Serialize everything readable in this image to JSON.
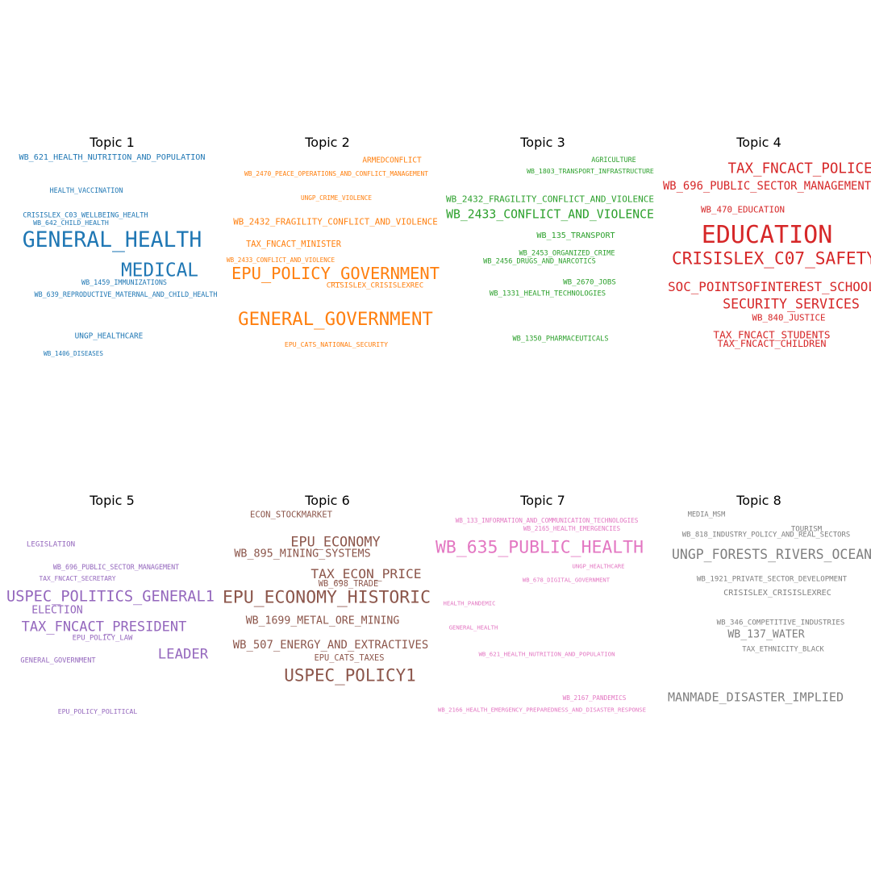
{
  "chart_data": [
    {
      "type": "wordcloud",
      "title": "Topic 1",
      "color": "#1f77b4",
      "words": [
        {
          "text": "WB_621_HEALTH_NUTRITION_AND_POPULATION",
          "weight": 0.17
        },
        {
          "text": "HEALTH_VACCINATION",
          "weight": 0.1
        },
        {
          "text": "CRISISLEX_C03_WELLBEING_HEALTH",
          "weight": 0.11
        },
        {
          "text": "WB_642_CHILD_HEALTH",
          "weight": 0.09
        },
        {
          "text": "GENERAL_HEALTH",
          "weight": 0.85
        },
        {
          "text": "MEDICAL",
          "weight": 0.7
        },
        {
          "text": "WB_1459_IMMUNIZATIONS",
          "weight": 0.1
        },
        {
          "text": "WB_639_REPRODUCTIVE_MATERNAL_AND_CHILD_HEALTH",
          "weight": 0.1
        },
        {
          "text": "UNGP_HEALTHCARE",
          "weight": 0.14
        },
        {
          "text": "WB_1406_DISEASES",
          "weight": 0.07
        }
      ]
    },
    {
      "type": "wordcloud",
      "title": "Topic 2",
      "color": "#ff7f0e",
      "words": [
        {
          "text": "ARMEDCONFLICT",
          "weight": 0.14
        },
        {
          "text": "WB_2470_PEACE_OPERATIONS_AND_CONFLICT_MANAGEMENT",
          "weight": 0.08
        },
        {
          "text": "UNGP_CRIME_VIOLENCE",
          "weight": 0.07
        },
        {
          "text": "WB_2432_FRAGILITY_CONFLICT_AND_VIOLENCE",
          "weight": 0.2
        },
        {
          "text": "TAX_FNCACT_MINISTER",
          "weight": 0.18
        },
        {
          "text": "WB_2433_CONFLICT_AND_VIOLENCE",
          "weight": 0.07
        },
        {
          "text": "EPU_POLICY_GOVERNMENT",
          "weight": 0.62
        },
        {
          "text": "CRISISLEX_CRISISLEXREC",
          "weight": 0.13
        },
        {
          "text": "GENERAL_GOVERNMENT",
          "weight": 0.68
        },
        {
          "text": "EPU_CATS_NATIONAL_SECURITY",
          "weight": 0.09
        }
      ]
    },
    {
      "type": "wordcloud",
      "title": "Topic 3",
      "color": "#2ca02c",
      "words": [
        {
          "text": "AGRICULTURE",
          "weight": 0.1
        },
        {
          "text": "WB_1803_TRANSPORT_INFRASTRUCTURE",
          "weight": 0.09
        },
        {
          "text": "WB_2432_FRAGILITY_CONFLICT_AND_VIOLENCE",
          "weight": 0.23
        },
        {
          "text": "WB_2433_CONFLICT_AND_VIOLENCE",
          "weight": 0.46
        },
        {
          "text": "WB_135_TRANSPORT",
          "weight": 0.17
        },
        {
          "text": "WB_2453_ORGANIZED_CRIME",
          "weight": 0.11
        },
        {
          "text": "WB_2456_DRUGS_AND_NARCOTICS",
          "weight": 0.11
        },
        {
          "text": "WB_2670_JOBS",
          "weight": 0.13
        },
        {
          "text": "WB_1331_HEALTH_TECHNOLOGIES",
          "weight": 0.12
        },
        {
          "text": "WB_1350_PHARMACEUTICALS",
          "weight": 0.11
        }
      ]
    },
    {
      "type": "wordcloud",
      "title": "Topic 4",
      "color": "#d62728",
      "words": [
        {
          "text": "TAX_FNCACT_POLICE",
          "weight": 0.48
        },
        {
          "text": "WB_696_PUBLIC_SECTOR_MANAGEMENT",
          "weight": 0.33
        },
        {
          "text": "WB_470_EDUCATION",
          "weight": 0.2
        },
        {
          "text": "EDUCATION",
          "weight": 1.0
        },
        {
          "text": "CRISISLEX_C07_SAFETY",
          "weight": 0.63
        },
        {
          "text": "SOC_POINTSOFINTEREST_SCHOOL",
          "weight": 0.46
        },
        {
          "text": "SECURITY_SERVICES",
          "weight": 0.44
        },
        {
          "text": "WB_840_JUSTICE",
          "weight": 0.2
        },
        {
          "text": "TAX_FNCACT_STUDENTS",
          "weight": 0.28
        },
        {
          "text": "TAX_FNCACT_CHILDREN",
          "weight": 0.24
        }
      ]
    },
    {
      "type": "wordcloud",
      "title": "Topic 5",
      "color": "#9467bd",
      "words": [
        {
          "text": "LEGISLATION",
          "weight": 0.13
        },
        {
          "text": "WB_696_PUBLIC_SECTOR_MANAGEMENT",
          "weight": 0.1
        },
        {
          "text": "TAX_FNCACT_SECRETARY",
          "weight": 0.08
        },
        {
          "text": "USPEC_POLITICS_GENERAL1",
          "weight": 0.64
        },
        {
          "text": "ELECTION",
          "weight": 0.3
        },
        {
          "text": "TAX_FNCACT_PRESIDENT",
          "weight": 0.46
        },
        {
          "text": "EPU_POLICY_LAW",
          "weight": 0.12
        },
        {
          "text": "LEADER",
          "weight": 0.47
        },
        {
          "text": "GENERAL_GOVERNMENT",
          "weight": 0.11
        },
        {
          "text": "EPU_POLICY_POLITICAL",
          "weight": 0.09
        }
      ]
    },
    {
      "type": "wordcloud",
      "title": "Topic 6",
      "color": "#8c564b",
      "words": [
        {
          "text": "ECON_STOCKMARKET",
          "weight": 0.19
        },
        {
          "text": "EPU_ECONOMY",
          "weight": 0.45
        },
        {
          "text": "WB_895_MINING_SYSTEMS",
          "weight": 0.31
        },
        {
          "text": "TAX_ECON_PRICE",
          "weight": 0.43
        },
        {
          "text": "WB_698_TRADE",
          "weight": 0.18
        },
        {
          "text": "EPU_ECONOMY_HISTORIC",
          "weight": 0.83
        },
        {
          "text": "WB_1699_METAL_ORE_MINING",
          "weight": 0.3
        },
        {
          "text": "WB_507_ENERGY_AND_EXTRACTIVES",
          "weight": 0.33
        },
        {
          "text": "EPU_CATS_TAXES",
          "weight": 0.18
        },
        {
          "text": "USPEC_POLICY1",
          "weight": 0.62
        }
      ]
    },
    {
      "type": "wordcloud",
      "title": "Topic 7",
      "color": "#e377c2",
      "words": [
        {
          "text": "WB_133_INFORMATION_AND_COMMUNICATION_TECHNOLOGIES",
          "weight": 0.07
        },
        {
          "text": "WB_2165_HEALTH_EMERGENCIES",
          "weight": 0.07
        },
        {
          "text": "WB_635_PUBLIC_HEALTH",
          "weight": 0.83
        },
        {
          "text": "UNGP_HEALTHCARE",
          "weight": 0.05
        },
        {
          "text": "WB_678_DIGITAL_GOVERNMENT",
          "weight": 0.05
        },
        {
          "text": "HEALTH_PANDEMIC",
          "weight": 0.05
        },
        {
          "text": "GENERAL_HEALTH",
          "weight": 0.05
        },
        {
          "text": "WB_621_HEALTH_NUTRITION_AND_POPULATION",
          "weight": 0.06
        },
        {
          "text": "WB_2167_PANDEMICS",
          "weight": 0.07
        },
        {
          "text": "WB_2166_HEALTH_EMERGENCY_PREPAREDNESS_AND_DISASTER_RESPONSE",
          "weight": 0.07
        }
      ]
    },
    {
      "type": "wordcloud",
      "title": "Topic 8",
      "color": "#7f7f7f",
      "words": [
        {
          "text": "MEDIA_MSM",
          "weight": 0.11
        },
        {
          "text": "TOURISM",
          "weight": 0.13
        },
        {
          "text": "WB_818_INDUSTRY_POLICY_AND_REAL_SECTORS",
          "weight": 0.12
        },
        {
          "text": "UNGP_FORESTS_RIVERS_OCEANS",
          "weight": 0.53
        },
        {
          "text": "WB_1921_PRIVATE_SECTOR_DEVELOPMENT",
          "weight": 0.13
        },
        {
          "text": "CRISISLEX_CRISISLEXREC",
          "weight": 0.17
        },
        {
          "text": "WB_346_COMPETITIVE_INDUSTRIES",
          "weight": 0.13
        },
        {
          "text": "WB_137_WATER",
          "weight": 0.3
        },
        {
          "text": "TAX_ETHNICITY_BLACK",
          "weight": 0.12
        },
        {
          "text": "MANMADE_DISASTER_IMPLIED",
          "weight": 0.38
        }
      ]
    }
  ]
}
